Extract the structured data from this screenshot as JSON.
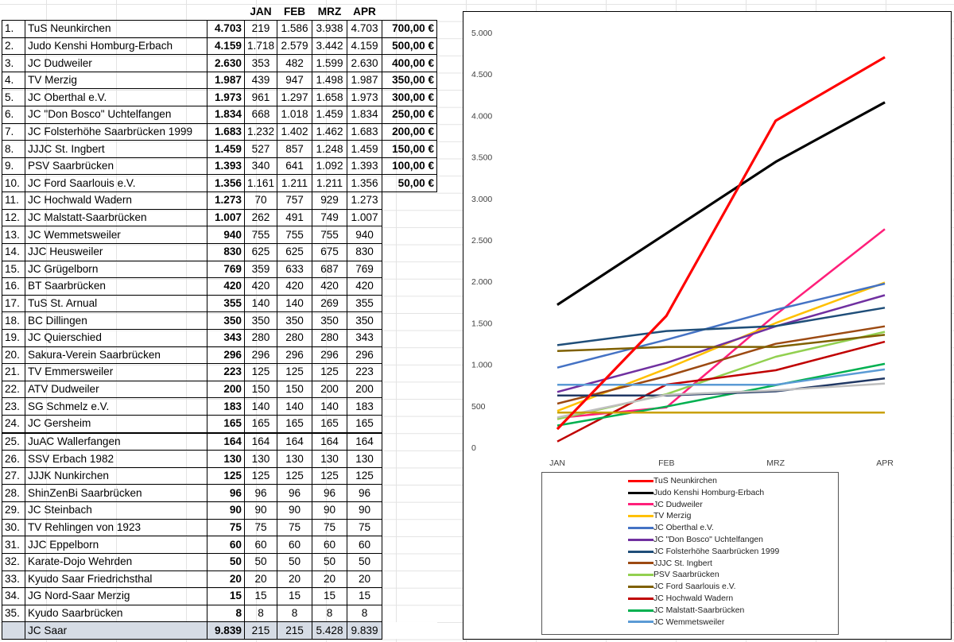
{
  "table": {
    "headers": {
      "jan": "JAN",
      "feb": "FEB",
      "mrz": "MRZ",
      "apr": "APR"
    },
    "rows": [
      {
        "rank": "1.",
        "name": "TuS Neunkirchen",
        "total": "4.703",
        "jan": "219",
        "feb": "1.586",
        "mrz": "3.938",
        "apr": "4.703",
        "prize": "700,00 €"
      },
      {
        "rank": "2.",
        "name": "Judo Kenshi Homburg-Erbach",
        "total": "4.159",
        "jan": "1.718",
        "feb": "2.579",
        "mrz": "3.442",
        "apr": "4.159",
        "prize": "500,00 €"
      },
      {
        "rank": "3.",
        "name": "JC Dudweiler",
        "total": "2.630",
        "jan": "353",
        "feb": "482",
        "mrz": "1.599",
        "apr": "2.630",
        "prize": "400,00 €"
      },
      {
        "rank": "4.",
        "name": "TV Merzig",
        "total": "1.987",
        "jan": "439",
        "feb": "947",
        "mrz": "1.498",
        "apr": "1.987",
        "prize": "350,00 €"
      },
      {
        "rank": "5.",
        "name": "JC Oberthal e.V.",
        "total": "1.973",
        "jan": "961",
        "feb": "1.297",
        "mrz": "1.658",
        "apr": "1.973",
        "prize": "300,00 €"
      },
      {
        "rank": "6.",
        "name": "JC \"Don Bosco\" Uchtelfangen",
        "total": "1.834",
        "jan": "668",
        "feb": "1.018",
        "mrz": "1.459",
        "apr": "1.834",
        "prize": "250,00 €"
      },
      {
        "rank": "7.",
        "name": "JC Folsterhöhe Saarbrücken 1999",
        "total": "1.683",
        "jan": "1.232",
        "feb": "1.402",
        "mrz": "1.462",
        "apr": "1.683",
        "prize": "200,00 €"
      },
      {
        "rank": "8.",
        "name": "JJJC St. Ingbert",
        "total": "1.459",
        "jan": "527",
        "feb": "857",
        "mrz": "1.248",
        "apr": "1.459",
        "prize": "150,00 €"
      },
      {
        "rank": "9.",
        "name": "PSV Saarbrücken",
        "total": "1.393",
        "jan": "340",
        "feb": "641",
        "mrz": "1.092",
        "apr": "1.393",
        "prize": "100,00 €"
      },
      {
        "rank": "10.",
        "name": "JC Ford Saarlouis e.V.",
        "total": "1.356",
        "jan": "1.161",
        "feb": "1.211",
        "mrz": "1.211",
        "apr": "1.356",
        "prize": "50,00 €"
      },
      {
        "rank": "11.",
        "name": "JC Hochwald Wadern",
        "total": "1.273",
        "jan": "70",
        "feb": "757",
        "mrz": "929",
        "apr": "1.273",
        "prize": ""
      },
      {
        "rank": "12.",
        "name": "JC Malstatt-Saarbrücken",
        "total": "1.007",
        "jan": "262",
        "feb": "491",
        "mrz": "749",
        "apr": "1.007",
        "prize": ""
      },
      {
        "rank": "13.",
        "name": "JC Wemmetsweiler",
        "total": "940",
        "jan": "755",
        "feb": "755",
        "mrz": "755",
        "apr": "940",
        "prize": ""
      },
      {
        "rank": "14.",
        "name": "JJC Heusweiler",
        "total": "830",
        "jan": "625",
        "feb": "625",
        "mrz": "675",
        "apr": "830",
        "prize": ""
      },
      {
        "rank": "15.",
        "name": "JC Grügelborn",
        "total": "769",
        "jan": "359",
        "feb": "633",
        "mrz": "687",
        "apr": "769",
        "prize": ""
      },
      {
        "rank": "16.",
        "name": "BT Saarbrücken",
        "total": "420",
        "jan": "420",
        "feb": "420",
        "mrz": "420",
        "apr": "420",
        "prize": ""
      },
      {
        "rank": "17.",
        "name": "TuS St. Arnual",
        "total": "355",
        "jan": "140",
        "feb": "140",
        "mrz": "269",
        "apr": "355",
        "prize": ""
      },
      {
        "rank": "18.",
        "name": "BC Dillingen",
        "total": "350",
        "jan": "350",
        "feb": "350",
        "mrz": "350",
        "apr": "350",
        "prize": ""
      },
      {
        "rank": "19.",
        "name": "JC Quierschied",
        "total": "343",
        "jan": "280",
        "feb": "280",
        "mrz": "280",
        "apr": "343",
        "prize": ""
      },
      {
        "rank": "20.",
        "name": "Sakura-Verein Saarbrücken",
        "total": "296",
        "jan": "296",
        "feb": "296",
        "mrz": "296",
        "apr": "296",
        "prize": ""
      },
      {
        "rank": "21.",
        "name": "TV Emmersweiler",
        "total": "223",
        "jan": "125",
        "feb": "125",
        "mrz": "125",
        "apr": "223",
        "prize": ""
      },
      {
        "rank": "22.",
        "name": "ATV Dudweiler",
        "total": "200",
        "jan": "150",
        "feb": "150",
        "mrz": "200",
        "apr": "200",
        "prize": ""
      },
      {
        "rank": "23.",
        "name": "SG Schmelz e.V.",
        "total": "183",
        "jan": "140",
        "feb": "140",
        "mrz": "140",
        "apr": "183",
        "prize": ""
      },
      {
        "rank": "24.",
        "name": "JC Gersheim",
        "total": "165",
        "jan": "165",
        "feb": "165",
        "mrz": "165",
        "apr": "165",
        "prize": ""
      },
      {
        "rank": "25.",
        "name": "JuAC Wallerfangen",
        "total": "164",
        "jan": "164",
        "feb": "164",
        "mrz": "164",
        "apr": "164",
        "prize": ""
      },
      {
        "rank": "26.",
        "name": "SSV Erbach 1982",
        "total": "130",
        "jan": "130",
        "feb": "130",
        "mrz": "130",
        "apr": "130",
        "prize": ""
      },
      {
        "rank": "27.",
        "name": "JJJK Nunkirchen",
        "total": "125",
        "jan": "125",
        "feb": "125",
        "mrz": "125",
        "apr": "125",
        "prize": ""
      },
      {
        "rank": "28.",
        "name": "ShinZenBi Saarbrücken",
        "total": "96",
        "jan": "96",
        "feb": "96",
        "mrz": "96",
        "apr": "96",
        "prize": ""
      },
      {
        "rank": "29.",
        "name": "JC Steinbach",
        "total": "90",
        "jan": "90",
        "feb": "90",
        "mrz": "90",
        "apr": "90",
        "prize": ""
      },
      {
        "rank": "30.",
        "name": "TV Rehlingen von 1923",
        "total": "75",
        "jan": "75",
        "feb": "75",
        "mrz": "75",
        "apr": "75",
        "prize": ""
      },
      {
        "rank": "31.",
        "name": "JJC Eppelborn",
        "total": "60",
        "jan": "60",
        "feb": "60",
        "mrz": "60",
        "apr": "60",
        "prize": ""
      },
      {
        "rank": "32.",
        "name": "Karate-Dojo Wehrden",
        "total": "50",
        "jan": "50",
        "feb": "50",
        "mrz": "50",
        "apr": "50",
        "prize": ""
      },
      {
        "rank": "33.",
        "name": "Kyudo Saar Friedrichsthal",
        "total": "20",
        "jan": "20",
        "feb": "20",
        "mrz": "20",
        "apr": "20",
        "prize": ""
      },
      {
        "rank": "34.",
        "name": "JG Nord-Saar Merzig",
        "total": "15",
        "jan": "15",
        "feb": "15",
        "mrz": "15",
        "apr": "15",
        "prize": ""
      },
      {
        "rank": "35.",
        "name": "Kyudo Saarbrücken",
        "total": "8",
        "jan": "8",
        "feb": "8",
        "mrz": "8",
        "apr": "8",
        "prize": ""
      }
    ],
    "total_row": {
      "rank": "",
      "name": "JC Saar",
      "total": "9.839",
      "jan": "215",
      "feb": "215",
      "mrz": "5.428",
      "apr": "9.839"
    }
  },
  "chart_data": {
    "type": "line",
    "title": "",
    "xlabel": "",
    "ylabel": "",
    "categories": [
      "JAN",
      "FEB",
      "MRZ",
      "APR"
    ],
    "ylim": [
      0,
      5000
    ],
    "yticks": [
      0,
      500,
      1000,
      1500,
      2000,
      2500,
      3000,
      3500,
      4000,
      4500,
      5000
    ],
    "ytick_labels": [
      "0",
      "500",
      "1.000",
      "1.500",
      "2.000",
      "2.500",
      "3.000",
      "3.500",
      "4.000",
      "4.500",
      "5.000"
    ],
    "legend_position": "bottom",
    "grid": false,
    "series": [
      {
        "name": "TuS Neunkirchen",
        "color": "#ff0000",
        "values": [
          219,
          1586,
          3938,
          4703
        ]
      },
      {
        "name": "Judo Kenshi Homburg-Erbach",
        "color": "#000000",
        "values": [
          1718,
          2579,
          3442,
          4159
        ]
      },
      {
        "name": "JC Dudweiler",
        "color": "#ff1f7a",
        "values": [
          353,
          482,
          1599,
          2630
        ]
      },
      {
        "name": "TV Merzig",
        "color": "#ffc000",
        "values": [
          439,
          947,
          1498,
          1987
        ]
      },
      {
        "name": "JC Oberthal e.V.",
        "color": "#4472c4",
        "values": [
          961,
          1297,
          1658,
          1973
        ]
      },
      {
        "name": "JC \"Don Bosco\" Uchtelfangen",
        "color": "#7030a0",
        "values": [
          668,
          1018,
          1459,
          1834
        ]
      },
      {
        "name": "JC Folsterhöhe Saarbrücken 1999",
        "color": "#1f4e79",
        "values": [
          1232,
          1402,
          1462,
          1683
        ]
      },
      {
        "name": "JJJC St. Ingbert",
        "color": "#9c4a12",
        "values": [
          527,
          857,
          1248,
          1459
        ]
      },
      {
        "name": "PSV Saarbrücken",
        "color": "#92d050",
        "values": [
          340,
          641,
          1092,
          1393
        ]
      },
      {
        "name": "JC Ford Saarlouis e.V.",
        "color": "#7f6000",
        "values": [
          1161,
          1211,
          1211,
          1356
        ]
      },
      {
        "name": "JC Hochwald Wadern",
        "color": "#c00000",
        "values": [
          70,
          757,
          929,
          1273
        ]
      },
      {
        "name": "JC Malstatt-Saarbrücken",
        "color": "#00b050",
        "values": [
          262,
          491,
          749,
          1007
        ]
      },
      {
        "name": "JC Wemmetsweiler",
        "color": "#5b9bd5",
        "values": [
          755,
          755,
          755,
          940
        ]
      },
      {
        "name": "JJC Heusweiler",
        "color": "#203864",
        "values": [
          625,
          625,
          675,
          830
        ]
      },
      {
        "name": "JC Grügelborn",
        "color": "#bfbfbf",
        "values": [
          359,
          633,
          687,
          769
        ]
      },
      {
        "name": "BT Saarbrücken",
        "color": "#c9a000",
        "values": [
          420,
          420,
          420,
          420
        ]
      }
    ],
    "legend_entries": [
      "TuS Neunkirchen",
      "Judo Kenshi Homburg-Erbach",
      "JC Dudweiler",
      "TV Merzig",
      "JC Oberthal e.V.",
      "JC \"Don Bosco\" Uchtelfangen",
      "JC Folsterhöhe Saarbrücken 1999",
      "JJJC St. Ingbert",
      "PSV Saarbrücken",
      "JC Ford Saarlouis e.V.",
      "JC Hochwald Wadern",
      "JC Malstatt-Saarbrücken",
      "JC Wemmetsweiler"
    ]
  }
}
